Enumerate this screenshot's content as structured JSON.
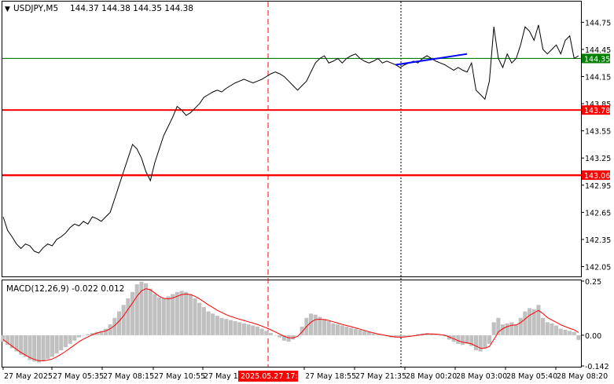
{
  "header": {
    "symbol_timeframe": "USDJPY,M5",
    "ohlc": "144.37 144.38 144.35 144.38"
  },
  "main_pane": {
    "price_range": [
      141.95,
      144.97
    ],
    "y_ticks": [
      "144.75",
      "144.45",
      "144.15",
      "143.85",
      "143.55",
      "143.25",
      "142.95",
      "142.65",
      "142.35",
      "142.05"
    ],
    "levels": [
      {
        "label": "144.35",
        "price": 144.35,
        "color": "#008000",
        "kind": "current-price"
      },
      {
        "label": "143.78",
        "price": 143.78,
        "color": "#ff0000",
        "kind": "horizontal-line"
      },
      {
        "label": "143.06",
        "price": 143.06,
        "color": "#ff0000",
        "kind": "horizontal-line"
      }
    ],
    "trendline": {
      "color": "#0000ff",
      "from": {
        "bar": 88,
        "price": 144.28
      },
      "to": {
        "bar": 104,
        "price": 144.4
      }
    }
  },
  "indicator": {
    "label": "MACD(12,26,9) -0.022 0.012",
    "y_range": [
      -0.142,
      0.25
    ],
    "y_ticks": [
      "0.25",
      "0.00",
      "-0.142"
    ]
  },
  "time_axis": {
    "labels": [
      "27 May 2025",
      "27 May 05:35",
      "27 May 08:15",
      "27 May 10:55",
      "27 May 13",
      "27 May 18:55",
      "27 May 21:35",
      "28 May 00:20",
      "28 May 03:00",
      "28 May 05:40",
      "28 May 08:20"
    ],
    "highlight_label": "2025.05.27 17:00"
  },
  "chart_data": {
    "type": "line",
    "title": "USDJPY,M5",
    "series": [
      {
        "name": "USDJPY,M5",
        "values": [
          142.6,
          142.45,
          142.38,
          142.3,
          142.25,
          142.3,
          142.28,
          142.22,
          142.2,
          142.26,
          142.3,
          142.28,
          142.35,
          142.38,
          142.42,
          142.48,
          142.52,
          142.5,
          142.55,
          142.52,
          142.6,
          142.58,
          142.55,
          142.6,
          142.65,
          142.8,
          142.95,
          143.1,
          143.25,
          143.4,
          143.35,
          143.25,
          143.1,
          143.0,
          143.2,
          143.35,
          143.5,
          143.6,
          143.7,
          143.82,
          143.78,
          143.72,
          143.75,
          143.8,
          143.85,
          143.92,
          143.95,
          143.98,
          144.0,
          143.98,
          144.02,
          144.05,
          144.08,
          144.1,
          144.12,
          144.1,
          144.08,
          144.1,
          144.12,
          144.15,
          144.18,
          144.2,
          144.18,
          144.15,
          144.1,
          144.05,
          144.0,
          144.05,
          144.1,
          144.2,
          144.3,
          144.35,
          144.38,
          144.3,
          144.32,
          144.35,
          144.3,
          144.35,
          144.38,
          144.4,
          144.35,
          144.32,
          144.3,
          144.32,
          144.35,
          144.3,
          144.32,
          144.3,
          144.28,
          144.25,
          144.28,
          144.3,
          144.32,
          144.3,
          144.35,
          144.38,
          144.35,
          144.32,
          144.3,
          144.28,
          144.25,
          144.22,
          144.25,
          144.22,
          144.2,
          144.3,
          144.0,
          143.95,
          143.9,
          144.1,
          144.7,
          144.35,
          144.25,
          144.4,
          144.3,
          144.35,
          144.5,
          144.7,
          144.65,
          144.55,
          144.72,
          144.45,
          144.4,
          144.45,
          144.5,
          144.4,
          144.55,
          144.6,
          144.35,
          144.38
        ]
      }
    ],
    "ylim": [
      141.95,
      144.97
    ],
    "grid": false,
    "legend": "none",
    "indicator": {
      "name": "MACD(12,26,9)",
      "histogram_color": "#c0c0c0",
      "signal_color": "#ff0000",
      "histogram": [
        -0.03,
        -0.045,
        -0.06,
        -0.075,
        -0.09,
        -0.1,
        -0.115,
        -0.122,
        -0.126,
        -0.12,
        -0.11,
        -0.1,
        -0.085,
        -0.07,
        -0.055,
        -0.04,
        -0.025,
        -0.01,
        0.0,
        0.005,
        0.01,
        0.015,
        0.02,
        0.03,
        0.05,
        0.08,
        0.11,
        0.14,
        0.17,
        0.2,
        0.235,
        0.248,
        0.24,
        0.215,
        0.19,
        0.175,
        0.17,
        0.18,
        0.19,
        0.2,
        0.205,
        0.2,
        0.19,
        0.17,
        0.15,
        0.13,
        0.11,
        0.1,
        0.09,
        0.08,
        0.075,
        0.07,
        0.065,
        0.06,
        0.055,
        0.05,
        0.045,
        0.04,
        0.03,
        0.02,
        0.01,
        0.0,
        -0.01,
        -0.025,
        -0.03,
        -0.02,
        0.0,
        0.04,
        0.08,
        0.1,
        0.095,
        0.085,
        0.075,
        0.065,
        0.055,
        0.05,
        0.045,
        0.04,
        0.035,
        0.03,
        0.025,
        0.02,
        0.015,
        0.01,
        0.005,
        0.0,
        -0.005,
        -0.01,
        -0.012,
        -0.01,
        -0.008,
        -0.005,
        0.0,
        0.005,
        0.008,
        0.01,
        0.008,
        0.005,
        0.0,
        -0.005,
        -0.02,
        -0.03,
        -0.04,
        -0.045,
        -0.04,
        -0.05,
        -0.07,
        -0.075,
        -0.06,
        -0.04,
        0.06,
        0.08,
        0.05,
        0.055,
        0.06,
        0.05,
        0.08,
        0.11,
        0.125,
        0.12,
        0.14,
        0.08,
        0.06,
        0.055,
        0.045,
        0.03,
        0.025,
        0.02,
        0.015,
        -0.022
      ],
      "signal": [
        -0.02,
        -0.035,
        -0.05,
        -0.065,
        -0.08,
        -0.092,
        -0.103,
        -0.112,
        -0.118,
        -0.118,
        -0.115,
        -0.11,
        -0.1,
        -0.088,
        -0.075,
        -0.06,
        -0.045,
        -0.03,
        -0.018,
        -0.008,
        0.002,
        0.01,
        0.015,
        0.02,
        0.03,
        0.045,
        0.065,
        0.09,
        0.12,
        0.15,
        0.18,
        0.205,
        0.215,
        0.21,
        0.195,
        0.18,
        0.17,
        0.168,
        0.172,
        0.18,
        0.188,
        0.19,
        0.188,
        0.18,
        0.168,
        0.155,
        0.14,
        0.128,
        0.115,
        0.105,
        0.095,
        0.087,
        0.08,
        0.074,
        0.068,
        0.062,
        0.056,
        0.05,
        0.042,
        0.034,
        0.025,
        0.015,
        0.005,
        -0.005,
        -0.012,
        -0.012,
        -0.005,
        0.015,
        0.04,
        0.06,
        0.072,
        0.074,
        0.072,
        0.068,
        0.062,
        0.056,
        0.05,
        0.045,
        0.04,
        0.034,
        0.028,
        0.022,
        0.016,
        0.011,
        0.006,
        0.002,
        -0.002,
        -0.006,
        -0.008,
        -0.009,
        -0.008,
        -0.006,
        -0.003,
        0.0,
        0.003,
        0.006,
        0.006,
        0.005,
        0.003,
        0.0,
        -0.008,
        -0.016,
        -0.025,
        -0.032,
        -0.035,
        -0.04,
        -0.05,
        -0.06,
        -0.06,
        -0.052,
        -0.02,
        0.015,
        0.03,
        0.04,
        0.046,
        0.048,
        0.058,
        0.075,
        0.092,
        0.103,
        0.115,
        0.1,
        0.082,
        0.07,
        0.06,
        0.048,
        0.04,
        0.032,
        0.025,
        0.012
      ]
    }
  }
}
